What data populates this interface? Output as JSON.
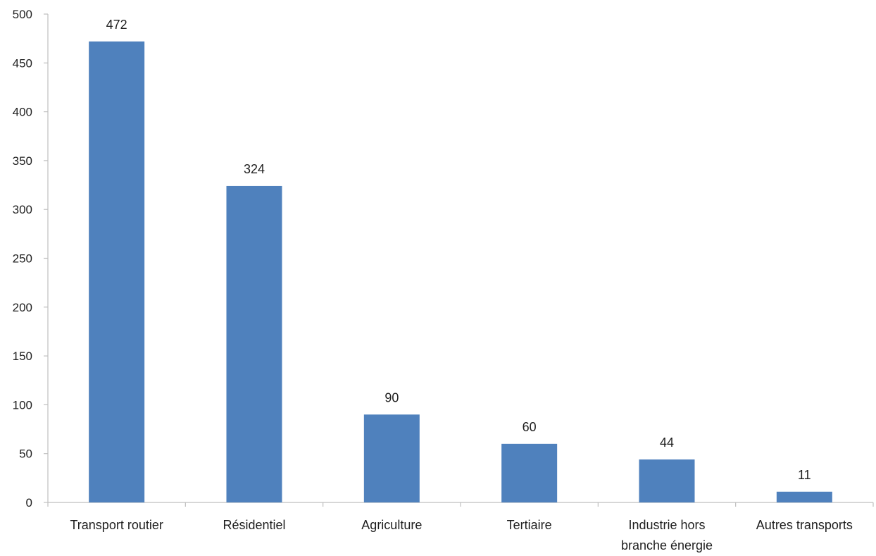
{
  "chart_data": {
    "type": "bar",
    "categories": [
      [
        "Transport routier"
      ],
      [
        "Résidentiel"
      ],
      [
        "Agriculture"
      ],
      [
        "Tertiaire"
      ],
      [
        "Industrie hors",
        "branche énergie"
      ],
      [
        "Autres transports"
      ]
    ],
    "values": [
      472,
      324,
      90,
      60,
      44,
      11
    ],
    "ylim": [
      0,
      500
    ],
    "yticks": [
      0,
      50,
      100,
      150,
      200,
      250,
      300,
      350,
      400,
      450,
      500
    ],
    "bar_color": "#4f81bd",
    "axis_color": "#bfbfbf",
    "grid": false,
    "data_labels": true
  }
}
